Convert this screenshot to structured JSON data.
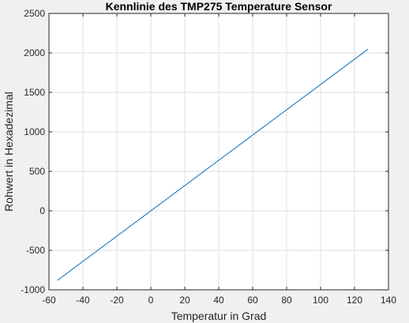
{
  "chart_data": {
    "type": "line",
    "title": "Kennlinie des TMP275 Temperature Sensor",
    "xlabel": "Temperatur in Grad",
    "ylabel": "Rohwert in Hexadezimal",
    "xlim": [
      -60,
      140
    ],
    "ylim": [
      -1000,
      2500
    ],
    "xticks": [
      -60,
      -40,
      -20,
      0,
      20,
      40,
      60,
      80,
      100,
      120,
      140
    ],
    "yticks": [
      -1000,
      -500,
      0,
      500,
      1000,
      1500,
      2000,
      2500
    ],
    "grid": true,
    "line_color": "#0072bd",
    "series": [
      {
        "x": [
          -55,
          128
        ],
        "y": [
          -880,
          2048
        ]
      }
    ]
  }
}
